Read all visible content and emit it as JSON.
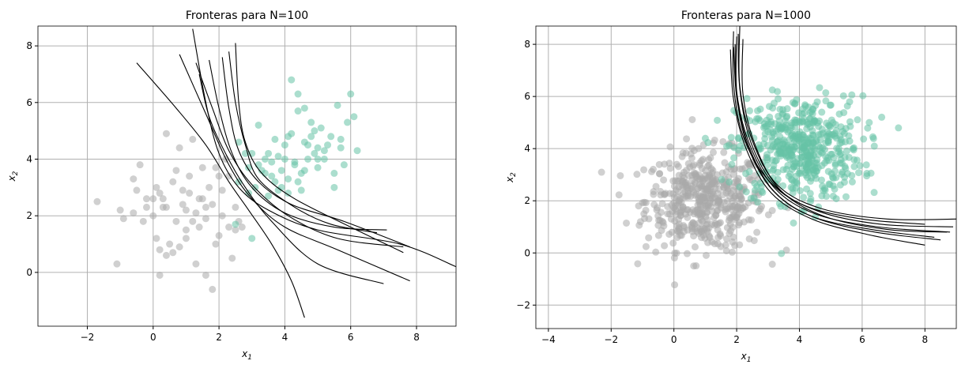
{
  "chart_data": [
    {
      "type": "scatter",
      "title": "Fronteras para N=100",
      "xlabel": "x",
      "xlabel_sub": "1",
      "ylabel": "x",
      "ylabel_sub": "2",
      "xlim": [
        -3.5,
        9.2
      ],
      "ylim": [
        -1.9,
        8.7
      ],
      "xticks": [
        "-2",
        "0",
        "2",
        "4",
        "6",
        "8"
      ],
      "yticks": [
        "0",
        "2",
        "4",
        "6",
        "8"
      ],
      "grid": true,
      "colors": {
        "class0": "#aaaaaa",
        "class1": "#66c2a5",
        "boundary": "#000000"
      },
      "series": [
        {
          "points": [
            [
              -1.7,
              2.5
            ],
            [
              -1.1,
              0.3
            ],
            [
              -1.0,
              2.2
            ],
            [
              -0.9,
              1.9
            ],
            [
              -0.6,
              2.1
            ],
            [
              -0.5,
              2.9
            ],
            [
              -0.4,
              3.8
            ],
            [
              -0.3,
              1.8
            ],
            [
              -0.2,
              2.6
            ],
            [
              0.0,
              2.0
            ],
            [
              0.1,
              1.2
            ],
            [
              0.2,
              2.8
            ],
            [
              0.3,
              2.3
            ],
            [
              0.4,
              2.3
            ],
            [
              0.6,
              3.2
            ],
            [
              0.7,
              1.8
            ],
            [
              0.9,
              2.9
            ],
            [
              1.0,
              1.2
            ],
            [
              1.1,
              2.8
            ],
            [
              1.3,
              2.1
            ],
            [
              1.4,
              1.6
            ],
            [
              1.5,
              2.6
            ],
            [
              1.6,
              1.9
            ],
            [
              1.8,
              2.4
            ],
            [
              1.9,
              1.0
            ],
            [
              2.0,
              3.4
            ],
            [
              2.1,
              2.0
            ],
            [
              2.3,
              1.6
            ],
            [
              2.5,
              2.3
            ],
            [
              2.6,
              1.8
            ],
            [
              2.7,
              1.6
            ],
            [
              0.2,
              0.8
            ],
            [
              0.4,
              0.6
            ],
            [
              0.8,
              0.9
            ],
            [
              1.3,
              0.3
            ],
            [
              1.6,
              -0.1
            ],
            [
              1.8,
              -0.6
            ],
            [
              0.2,
              -0.1
            ],
            [
              1.0,
              1.5
            ],
            [
              0.5,
              1.0
            ],
            [
              1.2,
              4.7
            ],
            [
              0.8,
              4.4
            ],
            [
              0.4,
              4.9
            ],
            [
              0.7,
              3.6
            ],
            [
              1.1,
              3.4
            ],
            [
              1.7,
              3.0
            ],
            [
              1.9,
              3.7
            ],
            [
              2.2,
              4.0
            ],
            [
              1.4,
              2.6
            ],
            [
              1.0,
              2.2
            ],
            [
              2.4,
              0.5
            ],
            [
              2.5,
              1.5
            ],
            [
              0.3,
              2.6
            ],
            [
              -0.2,
              2.3
            ],
            [
              0.9,
              2.4
            ],
            [
              1.6,
              2.3
            ],
            [
              2.1,
              2.9
            ],
            [
              2.3,
              3.4
            ],
            [
              0.1,
              3.0
            ],
            [
              -0.6,
              3.3
            ],
            [
              1.2,
              1.8
            ],
            [
              2.0,
              1.3
            ],
            [
              1.5,
              3.7
            ],
            [
              0.6,
              0.7
            ],
            [
              0.0,
              2.6
            ]
          ]
        },
        {
          "points": [
            [
              2.6,
              3.2
            ],
            [
              2.9,
              2.8
            ],
            [
              3.0,
              4.2
            ],
            [
              3.1,
              3.0
            ],
            [
              3.2,
              5.2
            ],
            [
              3.3,
              3.6
            ],
            [
              3.4,
              4.0
            ],
            [
              3.5,
              2.7
            ],
            [
              3.6,
              3.9
            ],
            [
              3.7,
              3.2
            ],
            [
              3.8,
              4.1
            ],
            [
              3.9,
              3.6
            ],
            [
              4.0,
              4.5
            ],
            [
              4.1,
              3.3
            ],
            [
              4.2,
              4.9
            ],
            [
              4.3,
              3.9
            ],
            [
              4.4,
              5.7
            ],
            [
              4.5,
              3.5
            ],
            [
              4.6,
              4.6
            ],
            [
              4.7,
              4.0
            ],
            [
              4.8,
              5.3
            ],
            [
              4.9,
              4.2
            ],
            [
              5.0,
              3.7
            ],
            [
              5.1,
              5.1
            ],
            [
              5.2,
              4.0
            ],
            [
              5.3,
              4.5
            ],
            [
              5.5,
              3.5
            ],
            [
              5.6,
              5.9
            ],
            [
              5.7,
              4.7
            ],
            [
              5.8,
              3.8
            ],
            [
              6.0,
              6.3
            ],
            [
              6.1,
              5.5
            ],
            [
              6.2,
              4.3
            ],
            [
              4.2,
              6.8
            ],
            [
              4.4,
              6.3
            ],
            [
              4.6,
              5.8
            ],
            [
              4.9,
              5.0
            ],
            [
              3.7,
              4.7
            ],
            [
              4.0,
              4.0
            ],
            [
              3.2,
              3.8
            ],
            [
              2.6,
              4.6
            ],
            [
              2.8,
              4.2
            ],
            [
              3.5,
              4.2
            ],
            [
              4.5,
              2.9
            ],
            [
              4.8,
              4.8
            ],
            [
              5.4,
              4.8
            ],
            [
              5.9,
              5.3
            ],
            [
              3.0,
              1.2
            ],
            [
              2.5,
              1.7
            ],
            [
              4.1,
              2.8
            ],
            [
              3.9,
              3.0
            ],
            [
              4.3,
              3.8
            ],
            [
              4.7,
              4.5
            ],
            [
              5.0,
              4.4
            ],
            [
              3.4,
              3.5
            ],
            [
              2.9,
              3.7
            ],
            [
              4.1,
              4.8
            ],
            [
              5.2,
              4.3
            ],
            [
              5.7,
              4.4
            ],
            [
              4.4,
              3.2
            ],
            [
              3.6,
              3.4
            ],
            [
              3.8,
              2.9
            ],
            [
              4.6,
              3.6
            ],
            [
              5.0,
              4.0
            ],
            [
              5.5,
              3.0
            ]
          ]
        }
      ],
      "boundaries": [
        [
          [
            -0.5,
            7.4
          ],
          [
            0.7,
            5.8
          ],
          [
            1.6,
            4.5
          ],
          [
            2.3,
            3.2
          ],
          [
            2.9,
            2.2
          ],
          [
            3.6,
            1.0
          ],
          [
            4.2,
            -0.3
          ],
          [
            4.6,
            -1.6
          ]
        ],
        [
          [
            1.2,
            8.6
          ],
          [
            1.6,
            6.0
          ],
          [
            2.0,
            4.2
          ],
          [
            2.6,
            3.0
          ],
          [
            3.5,
            2.2
          ],
          [
            5.0,
            1.5
          ],
          [
            7.5,
            1.0
          ],
          [
            9.2,
            0.2
          ]
        ],
        [
          [
            0.8,
            7.7
          ],
          [
            1.6,
            5.6
          ],
          [
            2.3,
            3.8
          ],
          [
            3.0,
            2.6
          ],
          [
            4.0,
            1.6
          ],
          [
            5.6,
            0.8
          ],
          [
            7.8,
            -0.3
          ]
        ],
        [
          [
            1.7,
            7.5
          ],
          [
            2.0,
            5.8
          ],
          [
            2.4,
            4.2
          ],
          [
            3.0,
            3.0
          ],
          [
            4.0,
            2.1
          ],
          [
            5.5,
            1.6
          ],
          [
            7.1,
            1.5
          ]
        ],
        [
          [
            2.1,
            7.6
          ],
          [
            2.3,
            5.8
          ],
          [
            2.6,
            4.3
          ],
          [
            3.2,
            3.2
          ],
          [
            4.2,
            2.4
          ],
          [
            5.8,
            1.8
          ],
          [
            7.8,
            0.9
          ]
        ],
        [
          [
            2.5,
            8.1
          ],
          [
            2.6,
            6.0
          ],
          [
            2.8,
            4.6
          ],
          [
            3.3,
            3.5
          ],
          [
            4.3,
            2.6
          ],
          [
            6.0,
            1.6
          ],
          [
            7.6,
            0.7
          ]
        ],
        [
          [
            1.3,
            7.4
          ],
          [
            1.8,
            5.8
          ],
          [
            2.3,
            4.3
          ],
          [
            3.0,
            3.1
          ],
          [
            4.1,
            2.0
          ],
          [
            5.6,
            1.2
          ],
          [
            7.6,
            0.9
          ]
        ],
        [
          [
            2.3,
            7.8
          ],
          [
            2.5,
            6.0
          ],
          [
            2.8,
            4.5
          ],
          [
            3.2,
            3.3
          ],
          [
            4.3,
            2.3
          ],
          [
            5.4,
            1.7
          ],
          [
            6.8,
            1.4
          ]
        ],
        [
          [
            1.4,
            7.0
          ],
          [
            1.7,
            5.5
          ],
          [
            2.2,
            4.2
          ],
          [
            2.8,
            3.0
          ],
          [
            3.6,
            1.8
          ],
          [
            5.0,
            0.3
          ],
          [
            7.0,
            -0.4
          ]
        ]
      ]
    },
    {
      "type": "scatter",
      "title": "Fronteras para N=1000",
      "xlabel": "x",
      "xlabel_sub": "1",
      "ylabel": "x",
      "ylabel_sub": "2",
      "xlim": [
        -4.4,
        9.0
      ],
      "ylim": [
        -2.9,
        8.7
      ],
      "xticks": [
        "-4",
        "-2",
        "0",
        "2",
        "4",
        "6",
        "8"
      ],
      "yticks": [
        "-2",
        "0",
        "2",
        "4",
        "6",
        "8"
      ],
      "grid": true,
      "colors": {
        "class0": "#aaaaaa",
        "class1": "#66c2a5",
        "boundary": "#000000"
      },
      "cloud": {
        "class0": {
          "center": [
            1.0,
            2.0
          ],
          "spread": [
            0.95,
            0.95
          ],
          "n": 500
        },
        "class1": {
          "center": [
            4.0,
            4.0
          ],
          "spread": [
            1.0,
            1.0
          ],
          "n": 500
        }
      },
      "boundaries": [
        [
          [
            1.9,
            8.5
          ],
          [
            1.9,
            6.5
          ],
          [
            2.2,
            4.5
          ],
          [
            3.0,
            2.8
          ],
          [
            4.2,
            1.8
          ],
          [
            6.0,
            1.3
          ],
          [
            8.0,
            1.1
          ]
        ],
        [
          [
            2.0,
            8.3
          ],
          [
            2.0,
            6.2
          ],
          [
            2.4,
            4.2
          ],
          [
            3.2,
            2.5
          ],
          [
            4.5,
            1.5
          ],
          [
            6.5,
            1.0
          ],
          [
            8.8,
            0.8
          ]
        ],
        [
          [
            2.1,
            8.7
          ],
          [
            2.1,
            6.4
          ],
          [
            2.5,
            4.3
          ],
          [
            3.3,
            2.6
          ],
          [
            4.7,
            1.7
          ],
          [
            6.8,
            1.3
          ],
          [
            9.0,
            1.3
          ]
        ],
        [
          [
            1.8,
            7.8
          ],
          [
            1.9,
            5.9
          ],
          [
            2.3,
            4.0
          ],
          [
            3.1,
            2.3
          ],
          [
            4.4,
            1.3
          ],
          [
            6.2,
            0.7
          ],
          [
            8.0,
            0.3
          ]
        ],
        [
          [
            2.2,
            8.2
          ],
          [
            2.2,
            6.1
          ],
          [
            2.6,
            4.1
          ],
          [
            3.4,
            2.4
          ],
          [
            4.8,
            1.4
          ],
          [
            6.8,
            0.9
          ],
          [
            8.7,
            0.8
          ]
        ],
        [
          [
            1.9,
            7.9
          ],
          [
            2.0,
            6.0
          ],
          [
            2.35,
            4.1
          ],
          [
            3.15,
            2.4
          ],
          [
            4.4,
            1.4
          ],
          [
            6.3,
            0.9
          ],
          [
            8.3,
            0.6
          ]
        ],
        [
          [
            2.05,
            8.4
          ],
          [
            2.1,
            6.3
          ],
          [
            2.45,
            4.25
          ],
          [
            3.25,
            2.55
          ],
          [
            4.6,
            1.6
          ],
          [
            6.6,
            1.1
          ],
          [
            8.9,
            1.0
          ]
        ],
        [
          [
            1.95,
            8.0
          ],
          [
            2.0,
            6.05
          ],
          [
            2.4,
            4.05
          ],
          [
            3.2,
            2.35
          ],
          [
            4.5,
            1.35
          ],
          [
            6.4,
            0.8
          ],
          [
            8.5,
            0.5
          ]
        ]
      ]
    }
  ]
}
